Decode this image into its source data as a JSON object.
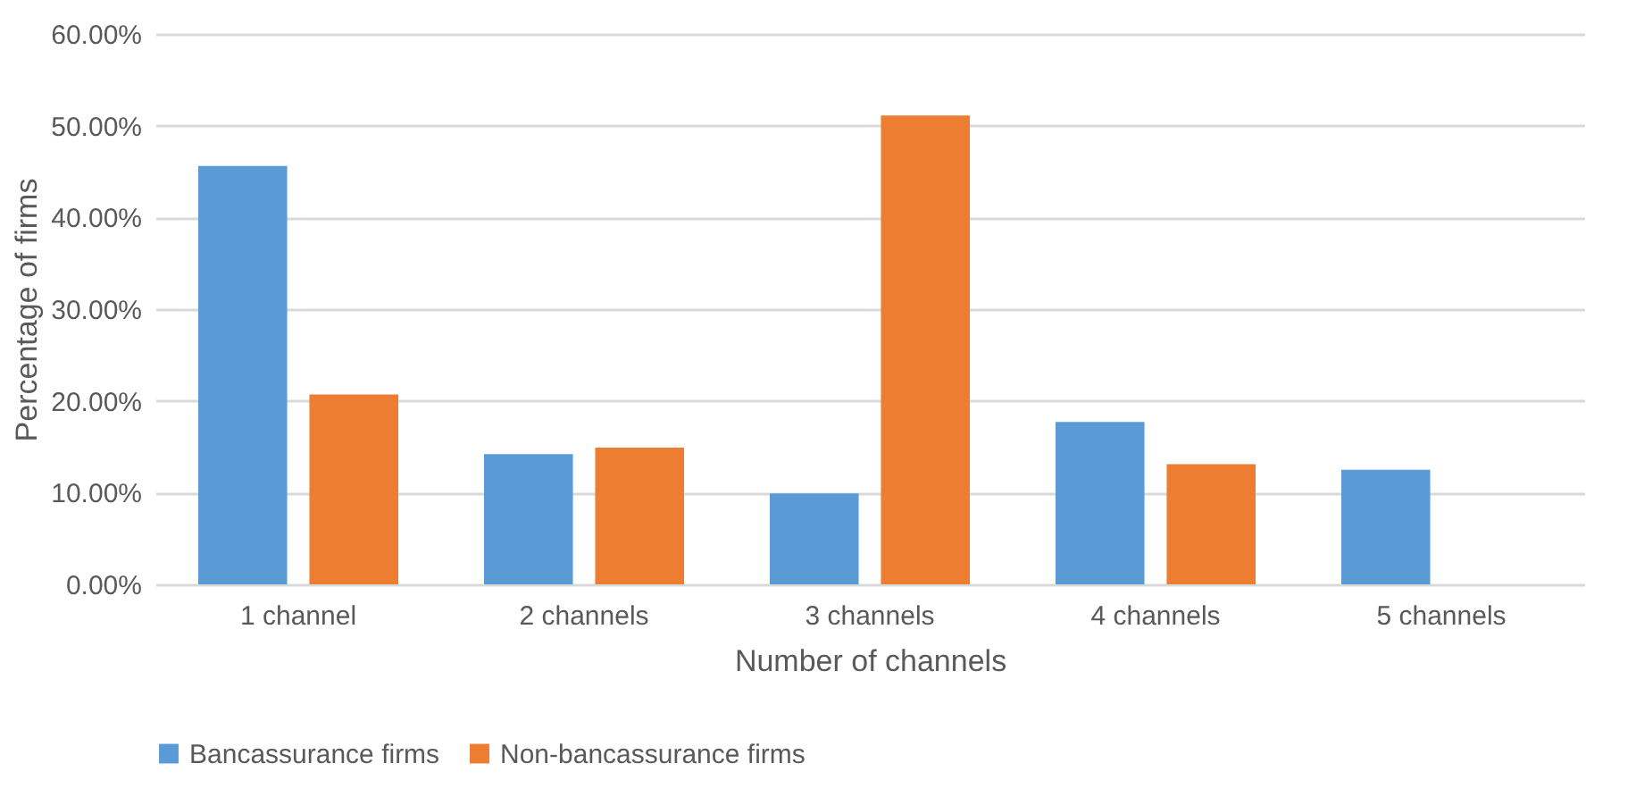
{
  "chart_data": {
    "type": "bar",
    "xlabel": "Number of channels",
    "ylabel": "Percentage of firms",
    "categories": [
      "1 channel",
      "2 channels",
      "3 channels",
      "4 channels",
      "5 channels"
    ],
    "series": [
      {
        "name": "Bancassurance firms",
        "color": "#5b9bd5",
        "values": [
          45.6,
          14.2,
          9.9,
          17.7,
          12.5
        ]
      },
      {
        "name": "Non-bancassurance firms",
        "color": "#ed7d31",
        "values": [
          20.7,
          14.9,
          51.1,
          13.1,
          0
        ]
      }
    ],
    "ylim": [
      0,
      60
    ],
    "yticks": [
      {
        "value": 0,
        "label": "0.00%"
      },
      {
        "value": 10,
        "label": "10.00%"
      },
      {
        "value": 20,
        "label": "20.00%"
      },
      {
        "value": 30,
        "label": "30.00%"
      },
      {
        "value": 40,
        "label": "40.00%"
      },
      {
        "value": 50,
        "label": "50.00%"
      },
      {
        "value": 60,
        "label": "60.00%"
      }
    ],
    "grid": "y",
    "legend": "bottom"
  }
}
